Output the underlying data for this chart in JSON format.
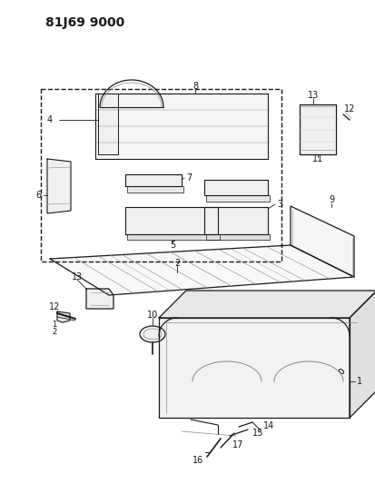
{
  "title": "81J69 9000",
  "bg_color": "#ffffff",
  "line_color": "#1a1a1a",
  "gray_color": "#888888",
  "light_gray": "#cccccc"
}
